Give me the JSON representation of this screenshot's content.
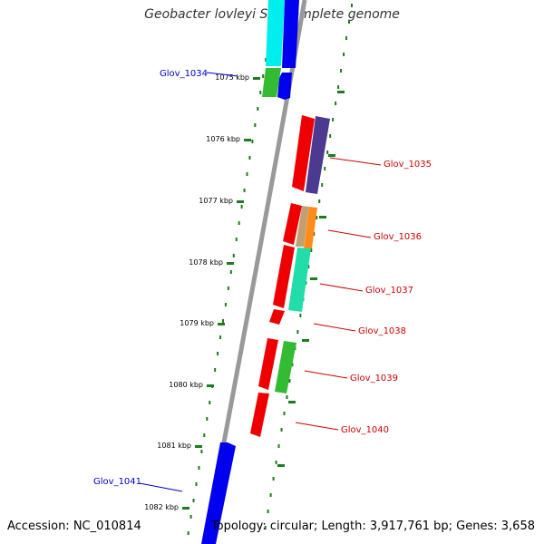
{
  "title": "Geobacter lovleyi SZ, complete genome",
  "footer": {
    "accession": "Accession: NC_010814",
    "summary": "Topology: circular; Length: 3,917,761 bp; Genes: 3,658"
  },
  "colors": {
    "backbone": "#888888",
    "tick": "#1e7b1e",
    "forward_label": "#0000cc",
    "reverse_label": "#cc0000"
  },
  "chart_data": {
    "type": "genome_map",
    "title": "Geobacter lovleyi SZ, complete genome",
    "kbp_ticks": [
      "1075 kbp",
      "1076 kbp",
      "1077 kbp",
      "1078 kbp",
      "1079 kbp",
      "1080 kbp",
      "1081 kbp",
      "1082 kbp"
    ],
    "gene_labels": [
      {
        "name": "Glov_1034",
        "strand": "forward"
      },
      {
        "name": "Glov_1035",
        "strand": "reverse"
      },
      {
        "name": "Glov_1036",
        "strand": "reverse"
      },
      {
        "name": "Glov_1037",
        "strand": "reverse"
      },
      {
        "name": "Glov_1038",
        "strand": "reverse"
      },
      {
        "name": "Glov_1039",
        "strand": "reverse"
      },
      {
        "name": "Glov_1040",
        "strand": "reverse"
      },
      {
        "name": "Glov_1041",
        "strand": "forward"
      }
    ]
  }
}
